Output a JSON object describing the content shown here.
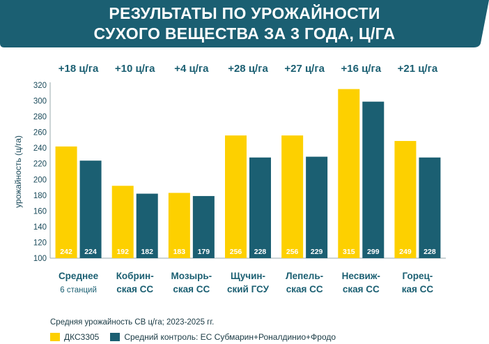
{
  "title": {
    "line1": "РЕЗУЛЬТАТЫ ПО УРОЖАЙНОСТИ",
    "line2": "СУХОГО ВЕЩЕСТВА ЗА 3 ГОДА, Ц/ГА"
  },
  "colors": {
    "banner": "#1b5f72",
    "series1": "#fdd000",
    "series2": "#1b5f72",
    "text": "#1a4a5a"
  },
  "legend": {
    "caption": "Средняя урожайность СВ ц/га; 2023-2025 гг.",
    "items": [
      "ДКС3305",
      "Средний контроль: ЕС Субмарин+Роналдинио+Фродо"
    ]
  },
  "chart_data": {
    "type": "bar",
    "ylabel": "урожайность (ц/га)",
    "ylim": [
      100,
      320
    ],
    "yticks": [
      100,
      120,
      140,
      160,
      180,
      200,
      220,
      240,
      260,
      280,
      300,
      320
    ],
    "grid": false,
    "categories": [
      [
        "Среднее",
        "6 станций"
      ],
      [
        "Кобрин-",
        "ская СС"
      ],
      [
        "Мозырь-",
        "ская СС"
      ],
      [
        "Щучин-",
        "ский ГСУ"
      ],
      [
        "Лепель-",
        "ская СС"
      ],
      [
        "Несвиж-",
        "ская СС"
      ],
      [
        "Горец-",
        "кая СС"
      ]
    ],
    "differences": [
      "+18 ц/га",
      "+10 ц/га",
      "+4 ц/га",
      "+28 ц/га",
      "+27 ц/га",
      "+16 ц/га",
      "+21 ц/га"
    ],
    "series": [
      {
        "name": "ДКС3305",
        "values": [
          242,
          192,
          183,
          256,
          256,
          315,
          249
        ]
      },
      {
        "name": "Средний контроль: ЕС Субмарин+Роналдинио+Фродо",
        "values": [
          224,
          182,
          179,
          228,
          229,
          299,
          228
        ]
      }
    ]
  }
}
